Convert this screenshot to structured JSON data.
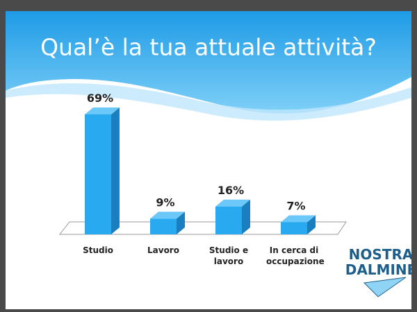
{
  "chart_data": {
    "type": "bar",
    "title": "Qual’è la tua attuale attività?",
    "categories": [
      "Studio",
      "Lavoro",
      "Studio e lavoro",
      "In cerca di occupazione"
    ],
    "values": [
      69,
      9,
      16,
      7
    ],
    "value_labels": [
      "69%",
      "9%",
      "16%",
      "7%"
    ],
    "color": "#29a9f0"
  },
  "logo": [
    "NOSTRA",
    "DALMINE"
  ]
}
